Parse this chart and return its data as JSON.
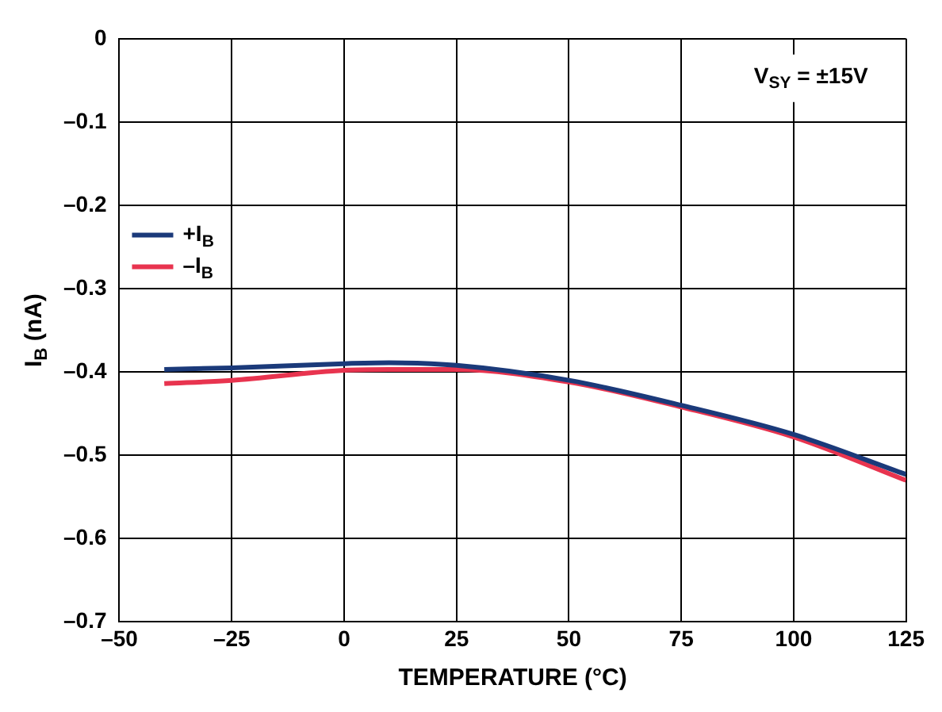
{
  "chart_data": {
    "type": "line",
    "xlabel": "TEMPERATURE (°C)",
    "ylabel": "I$_{B}$ (nA)",
    "annotations": [
      "V$_{SY}$ = ±15V"
    ],
    "xlim": [
      -50,
      125
    ],
    "xticks": [
      {
        "value": -50,
        "label": "–50"
      },
      {
        "value": -25,
        "label": "–25"
      },
      0,
      25,
      50,
      75,
      100,
      125
    ],
    "ylim": [
      -0.7,
      0
    ],
    "yticks": [
      {
        "value": -0.7,
        "label": "–0.7"
      },
      {
        "value": -0.6,
        "label": "–0.6"
      },
      {
        "value": -0.5,
        "label": "–0.5"
      },
      {
        "value": -0.4,
        "label": "–0.4"
      },
      {
        "value": -0.3,
        "label": "–0.3"
      },
      {
        "value": -0.2,
        "label": "–0.2"
      },
      {
        "value": -0.1,
        "label": "–0.1"
      },
      0
    ],
    "grid": true,
    "legend": "center left",
    "marker": "none",
    "line_style": "solid",
    "series": [
      {
        "name": "+I$_{B}$",
        "color": "#1b3a7a",
        "x": [
          -40,
          -25,
          0,
          10,
          25,
          50,
          75,
          100,
          125
        ],
        "values": [
          -0.397,
          -0.395,
          -0.39,
          -0.389,
          -0.392,
          -0.41,
          -0.44,
          -0.475,
          -0.523
        ]
      },
      {
        "name": "–I$_{B}$",
        "color": "#e8344f",
        "x": [
          -40,
          -25,
          0,
          10,
          25,
          50,
          75,
          100,
          125
        ],
        "values": [
          -0.414,
          -0.41,
          -0.398,
          -0.397,
          -0.397,
          -0.412,
          -0.442,
          -0.478,
          -0.53
        ]
      }
    ]
  }
}
